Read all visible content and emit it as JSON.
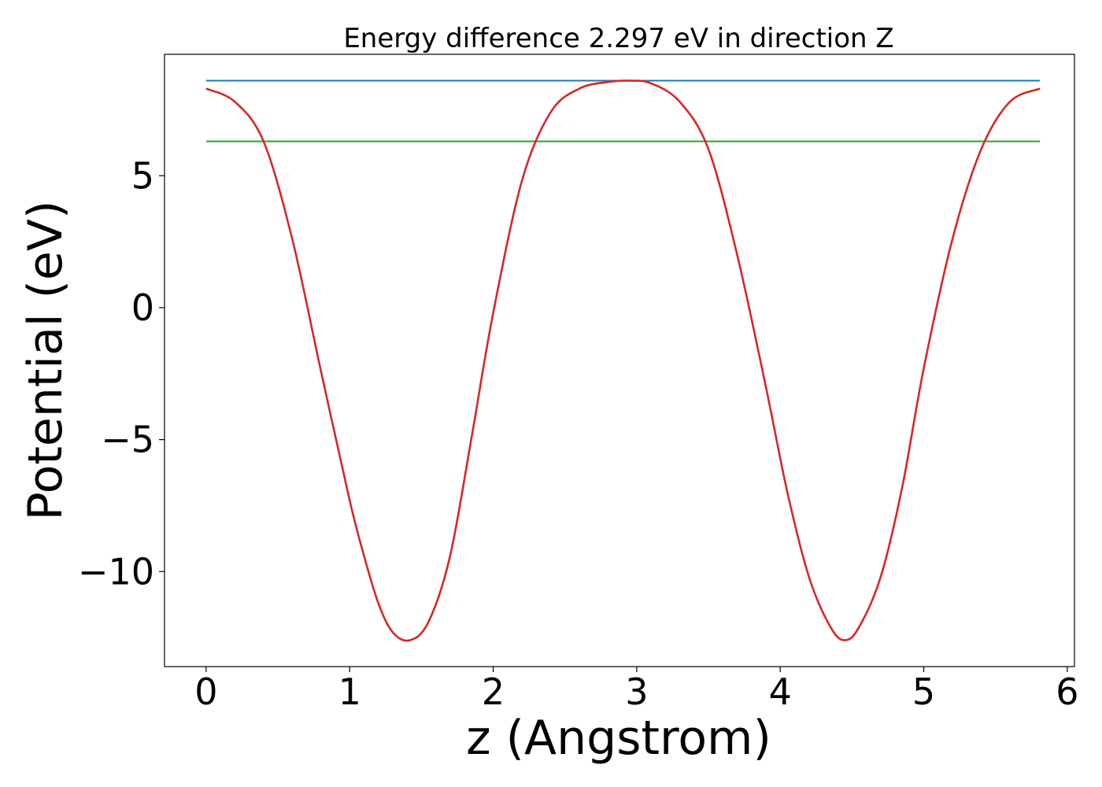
{
  "chart_data": {
    "type": "line",
    "title": "Energy difference 2.297 eV in direction Z",
    "xlabel": "z (Angstrom)",
    "ylabel": "Potential (eV)",
    "xlim": [
      -0.29,
      6.05
    ],
    "ylim": [
      -13.6,
      9.6
    ],
    "x_ticks": [
      {
        "value": 0,
        "label": "0"
      },
      {
        "value": 1,
        "label": "1"
      },
      {
        "value": 2,
        "label": "2"
      },
      {
        "value": 3,
        "label": "3"
      },
      {
        "value": 4,
        "label": "4"
      },
      {
        "value": 5,
        "label": "5"
      },
      {
        "value": 6,
        "label": "6"
      }
    ],
    "y_ticks": [
      {
        "value": 5,
        "label": "5"
      },
      {
        "value": 0,
        "label": "0"
      },
      {
        "value": -5,
        "label": "−5"
      },
      {
        "value": -10,
        "label": "−10"
      }
    ],
    "grid": false,
    "legend": "none",
    "series": [
      {
        "color": "#1f77b4",
        "x": [
          0,
          5.81
        ],
        "y": [
          8.6,
          8.6
        ]
      },
      {
        "color": "#2ca02c",
        "x": [
          0,
          5.81
        ],
        "y": [
          6.3,
          6.3
        ]
      },
      {
        "color": "#d62728",
        "x": [
          0,
          0.2,
          0.4,
          0.6,
          0.8,
          1.0,
          1.1,
          1.2,
          1.3,
          1.42,
          1.55,
          1.7,
          1.85,
          2.0,
          2.2,
          2.4,
          2.6,
          2.8,
          2.95,
          3.1,
          3.3,
          3.5,
          3.7,
          3.9,
          4.05,
          4.2,
          4.35,
          4.45,
          4.55,
          4.7,
          4.85,
          5.0,
          5.2,
          5.4,
          5.6,
          5.81
        ],
        "y": [
          8.3,
          7.8,
          6.3,
          2.6,
          -2.4,
          -7.3,
          -9.4,
          -11.2,
          -12.3,
          -12.6,
          -11.9,
          -9.4,
          -4.9,
          -0.2,
          4.8,
          7.4,
          8.3,
          8.55,
          8.6,
          8.5,
          7.8,
          6.0,
          2.0,
          -3.0,
          -7.0,
          -10.2,
          -12.1,
          -12.6,
          -12.1,
          -10.2,
          -6.8,
          -2.3,
          2.6,
          6.0,
          7.8,
          8.3
        ]
      }
    ]
  }
}
